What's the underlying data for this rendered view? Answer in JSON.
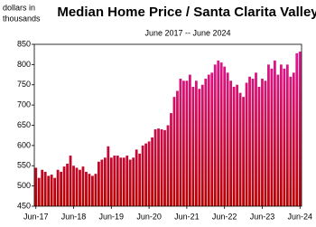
{
  "chart_data": {
    "type": "bar",
    "title": "Median Home Price / Santa Clarita Valley",
    "subtitle": "June 2017 -- June 2024",
    "y_label": [
      "dollars in",
      "thousands"
    ],
    "categories": [
      "Jun-17",
      null,
      null,
      null,
      null,
      null,
      null,
      null,
      null,
      null,
      null,
      null,
      "Jun-18",
      null,
      null,
      null,
      null,
      null,
      null,
      null,
      null,
      null,
      null,
      null,
      "Jun-19",
      null,
      null,
      null,
      null,
      null,
      null,
      null,
      null,
      null,
      null,
      null,
      "Jun-20",
      null,
      null,
      null,
      null,
      null,
      null,
      null,
      null,
      null,
      null,
      null,
      "Jun-21",
      null,
      null,
      null,
      null,
      null,
      null,
      null,
      null,
      null,
      null,
      null,
      "Jun-22",
      null,
      null,
      null,
      null,
      null,
      null,
      null,
      null,
      null,
      null,
      null,
      "Jun-23",
      null,
      null,
      null,
      null,
      null,
      null,
      null,
      null,
      null,
      null,
      null,
      "Jun-24"
    ],
    "values": [
      545,
      520,
      540,
      535,
      525,
      528,
      520,
      540,
      535,
      548,
      555,
      575,
      550,
      545,
      540,
      548,
      535,
      530,
      525,
      530,
      560,
      565,
      570,
      598,
      570,
      575,
      575,
      570,
      570,
      575,
      565,
      570,
      590,
      580,
      600,
      605,
      610,
      620,
      640,
      642,
      640,
      638,
      650,
      680,
      720,
      735,
      765,
      760,
      760,
      775,
      745,
      760,
      740,
      750,
      765,
      775,
      780,
      800,
      810,
      805,
      795,
      780,
      760,
      745,
      750,
      730,
      720,
      755,
      770,
      765,
      780,
      745,
      765,
      760,
      800,
      790,
      810,
      775,
      800,
      790,
      800,
      770,
      780,
      828,
      832
    ],
    "gradient": [
      "#e0189c",
      "#b80000"
    ],
    "ylim": [
      450,
      850
    ],
    "yticks": [
      450,
      500,
      550,
      600,
      650,
      700,
      750,
      800,
      850
    ],
    "grid": false
  }
}
